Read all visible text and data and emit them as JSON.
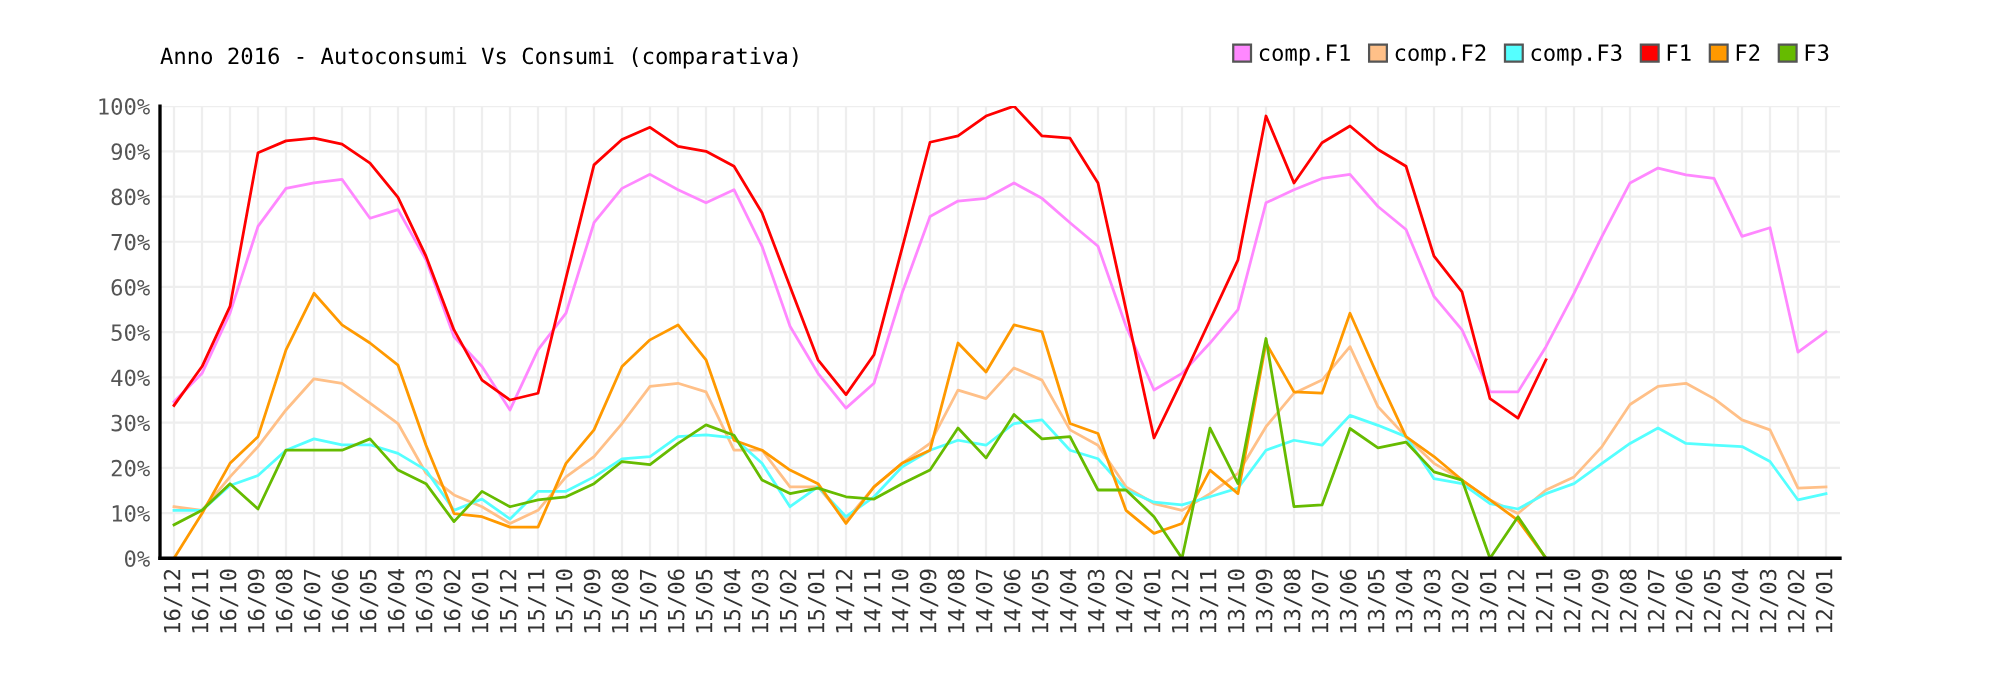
{
  "chart_data": {
    "type": "line",
    "title": "Anno 2016 - Autoconsumi Vs Consumi (comparativa)",
    "categories": [
      "16/12",
      "16/11",
      "16/10",
      "16/09",
      "16/08",
      "16/07",
      "16/06",
      "16/05",
      "16/04",
      "16/03",
      "16/02",
      "16/01",
      "15/12",
      "15/11",
      "15/10",
      "15/09",
      "15/08",
      "15/07",
      "15/06",
      "15/05",
      "15/04",
      "15/03",
      "15/02",
      "15/01",
      "14/12",
      "14/11",
      "14/10",
      "14/09",
      "14/08",
      "14/07",
      "14/06",
      "14/05",
      "14/04",
      "14/03",
      "14/02",
      "14/01",
      "13/12",
      "13/11",
      "13/10",
      "13/09",
      "13/08",
      "13/07",
      "13/06",
      "13/05",
      "13/04",
      "13/03",
      "13/02",
      "13/01",
      "12/12",
      "12/11",
      "12/10",
      "12/09",
      "12/08",
      "12/07",
      "12/06",
      "12/05",
      "12/04",
      "12/03",
      "12/02",
      "12/01"
    ],
    "series": [
      {
        "name": "comp.F1",
        "color": "#ff88ff",
        "values": [
          34.6,
          40.9,
          54.2,
          73.4,
          81.8,
          83,
          83.8,
          75.2,
          77.1,
          66,
          49,
          42.4,
          32.8,
          46.1,
          54.2,
          74.2,
          81.8,
          84.9,
          81.5,
          78.6,
          81.5,
          69,
          51.3,
          40.9,
          33.2,
          38.7,
          58.6,
          75.6,
          79,
          79.6,
          83,
          79.6,
          74.2,
          69,
          51.3,
          37.2,
          40.9,
          47.6,
          55,
          78.6,
          81.5,
          84,
          84.9,
          77.8,
          72.7,
          57.9,
          50.5,
          36.8,
          36.8,
          46.8,
          58.6,
          71.2,
          83,
          86.3,
          84.8,
          84,
          71.2,
          73.1,
          45.6,
          50.1
        ]
      },
      {
        "name": "comp.F2",
        "color": "#ffc088",
        "values": [
          11.4,
          10.6,
          18,
          24.7,
          32.8,
          39.7,
          38.7,
          34.3,
          29.8,
          18.8,
          14,
          11.4,
          7.7,
          10.6,
          18,
          22.5,
          29.8,
          38,
          38.7,
          36.8,
          23.9,
          23.9,
          15.8,
          15.8,
          8.4,
          15.8,
          21,
          25.4,
          37.2,
          35.3,
          42.1,
          39.4,
          28.4,
          25,
          15.8,
          12.1,
          10.6,
          14.3,
          18.8,
          29.1,
          36.5,
          39.4,
          46.8,
          33.5,
          26.9,
          21,
          17.3,
          12.9,
          9.9,
          15.1,
          18,
          24.7,
          34,
          38,
          38.7,
          35.3,
          30.6,
          28.4,
          15.5,
          15.8
        ]
      },
      {
        "name": "comp.F3",
        "color": "#55ffff",
        "values": [
          10.6,
          10.6,
          16.1,
          18.3,
          23.9,
          26.4,
          25.1,
          25.1,
          23.2,
          19.5,
          10.6,
          13.1,
          8.7,
          14.8,
          14.8,
          18,
          22,
          22.5,
          26.9,
          27.3,
          26.6,
          21,
          11.4,
          15.8,
          9.2,
          13.6,
          20.2,
          23.9,
          26.1,
          25,
          29.8,
          30.6,
          23.9,
          22,
          15.1,
          12.4,
          11.8,
          13.6,
          15.5,
          23.9,
          26.1,
          25,
          31.6,
          29.4,
          26.9,
          17.6,
          16.5,
          12.1,
          10.9,
          14.3,
          16.5,
          21,
          25.4,
          28.8,
          25.4,
          25,
          24.7,
          21.4,
          12.9,
          14.3
        ]
      },
      {
        "name": "F1",
        "color": "#ff0000",
        "values": [
          33.8,
          42.4,
          55.7,
          89.7,
          92.3,
          92.9,
          91.6,
          87.4,
          79.8,
          66.8,
          50.5,
          39.4,
          35,
          36.5,
          62,
          87,
          92.6,
          95.3,
          91.1,
          90,
          86.7,
          76.4,
          60.1,
          43.9,
          36.2,
          45,
          68.5,
          92,
          93.4,
          97.8,
          100,
          93.4,
          92.9,
          83,
          55,
          26.6,
          39.4,
          52.7,
          66,
          97.8,
          83,
          91.9,
          95.6,
          90.4,
          86.7,
          66.8,
          58.9,
          35.3,
          31,
          43.9,
          null,
          null,
          null,
          null,
          null,
          null,
          null,
          null,
          null,
          null
        ]
      },
      {
        "name": "F2",
        "color": "#ff9900",
        "values": [
          0,
          9.9,
          21,
          26.9,
          46.1,
          58.6,
          51.6,
          47.6,
          42.7,
          25,
          9.9,
          9.2,
          6.9,
          6.9,
          21,
          28.4,
          42.4,
          48.3,
          51.6,
          43.9,
          26.1,
          23.9,
          19.5,
          16.5,
          7.7,
          15.8,
          21,
          23.9,
          47.6,
          41.2,
          51.6,
          50.1,
          29.8,
          27.6,
          10.6,
          5.5,
          7.7,
          19.5,
          14.3,
          47.6,
          36.8,
          36.5,
          54.2,
          40.2,
          26.9,
          22.5,
          17.3,
          12.9,
          8.4,
          0,
          null,
          null,
          null,
          null,
          null,
          null,
          null,
          null,
          null,
          null
        ]
      },
      {
        "name": "F3",
        "color": "#66bb00",
        "values": [
          7.4,
          10.6,
          16.5,
          10.9,
          23.9,
          23.9,
          23.9,
          26.4,
          19.5,
          16.5,
          8.1,
          14.8,
          11.4,
          12.9,
          13.6,
          16.5,
          21.4,
          20.7,
          25.4,
          29.5,
          27.2,
          17.3,
          14.3,
          15.5,
          13.6,
          13.1,
          16.5,
          19.5,
          28.8,
          22.2,
          31.8,
          26.4,
          26.9,
          15.1,
          15.1,
          9.2,
          0,
          28.8,
          16.5,
          48.6,
          11.4,
          11.8,
          28.7,
          24.4,
          25.7,
          19.1,
          17.3,
          0,
          9.2,
          0,
          null,
          null,
          null,
          null,
          null,
          null,
          null,
          null,
          null,
          null
        ]
      }
    ],
    "ylim": [
      0,
      100
    ],
    "yticks": [
      {
        "value": 0,
        "label": "0%"
      },
      {
        "value": 10,
        "label": "10%"
      },
      {
        "value": 20,
        "label": "20%"
      },
      {
        "value": 30,
        "label": "30%"
      },
      {
        "value": 40,
        "label": "40%"
      },
      {
        "value": 50,
        "label": "50%"
      },
      {
        "value": 60,
        "label": "60%"
      },
      {
        "value": 70,
        "label": "70%"
      },
      {
        "value": 80,
        "label": "80%"
      },
      {
        "value": 90,
        "label": "90%"
      },
      {
        "value": 100,
        "label": "100%"
      }
    ],
    "grid": true,
    "legend": "top right",
    "marker": "none",
    "line_style": "solid"
  }
}
